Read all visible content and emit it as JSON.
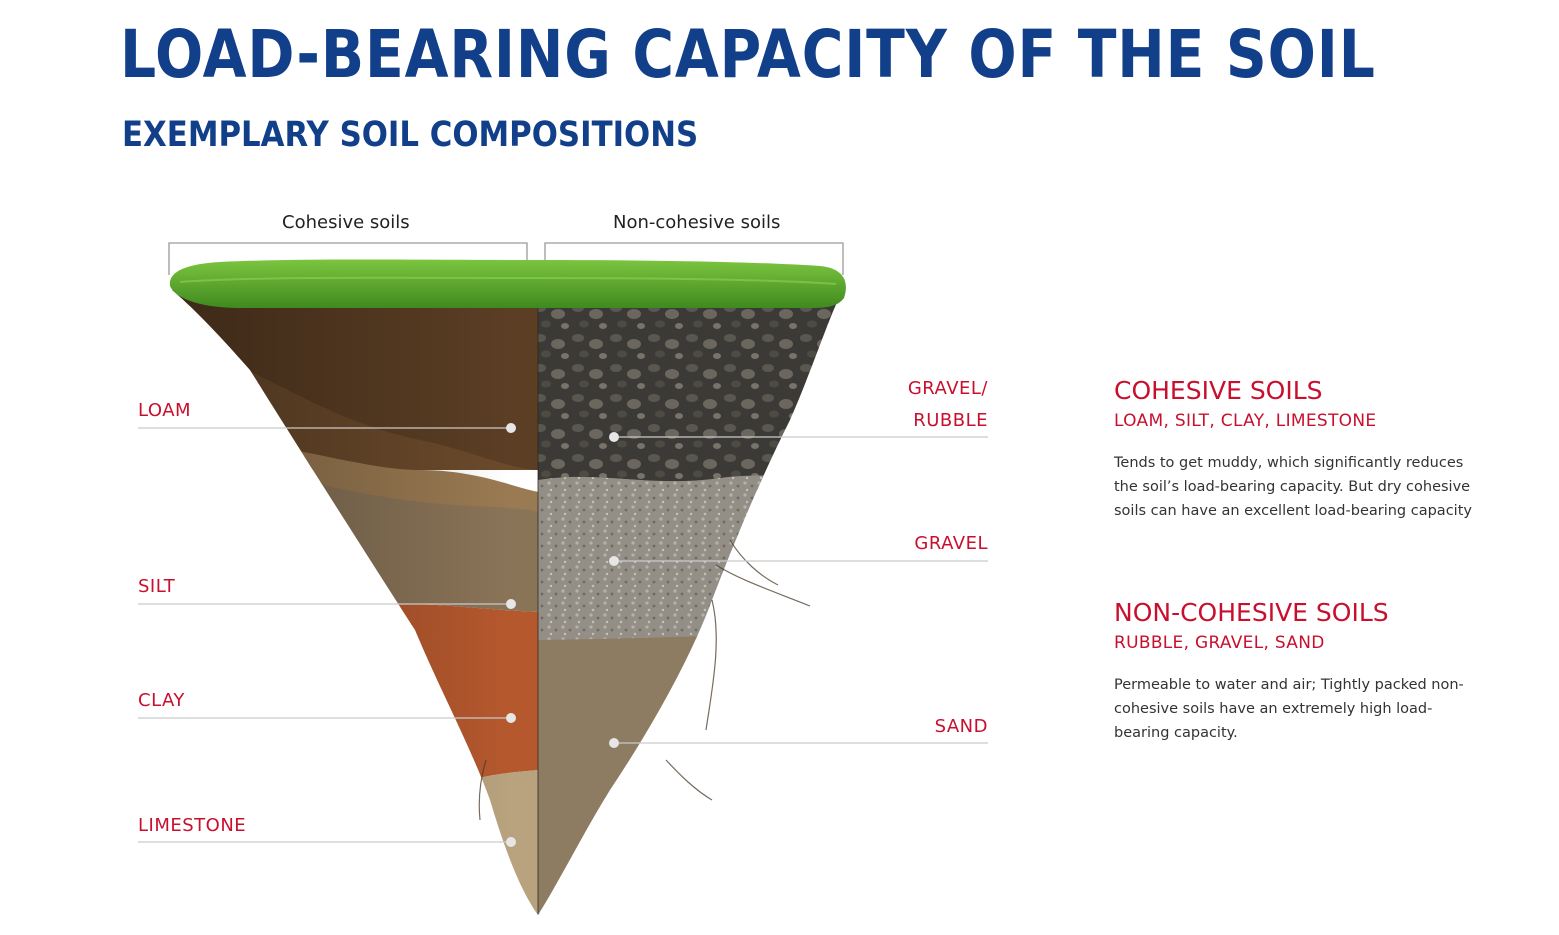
{
  "header": {
    "title": "LOAD-BEARING CAPACITY OF THE SOIL",
    "subtitle": "EXEMPLARY SOIL COMPOSITIONS"
  },
  "diagram": {
    "groups": {
      "cohesive": "Cohesive soils",
      "non_cohesive": "Non-cohesive soils"
    },
    "left_layers": [
      "LOAM",
      "SILT",
      "CLAY",
      "LIMESTONE"
    ],
    "right_layers": {
      "gravel_rubble_line1": "GRAVEL/",
      "gravel_rubble_line2": "RUBBLE",
      "gravel": "GRAVEL",
      "sand": "SAND"
    }
  },
  "info": {
    "cohesive": {
      "title": "COHESIVE SOILS",
      "types": "LOAM, SILT, CLAY, LIMESTONE",
      "description": "Tends to get muddy, which significantly reduces the soil’s load-bearing capacity. But dry cohesive soils can have an excellent load-bearing capacity"
    },
    "non_cohesive": {
      "title": "NON-COHESIVE SOILS",
      "types": "RUBBLE, GRAVEL, SAND",
      "description": "Permeable to water and air; Tightly packed non-cohesive soils have an extremely high load-bearing capacity."
    }
  },
  "colors": {
    "title_blue": "#123f8a",
    "accent_red": "#c8102e",
    "grass": "#5fae2e",
    "loam": "#6b4a2b",
    "silt": "#8a7458",
    "clay": "#b5582e",
    "limestone": "#b9a27e",
    "gravel_rubble": "#3c3a36",
    "gravel": "#9a958c",
    "sand": "#8d7c62"
  }
}
